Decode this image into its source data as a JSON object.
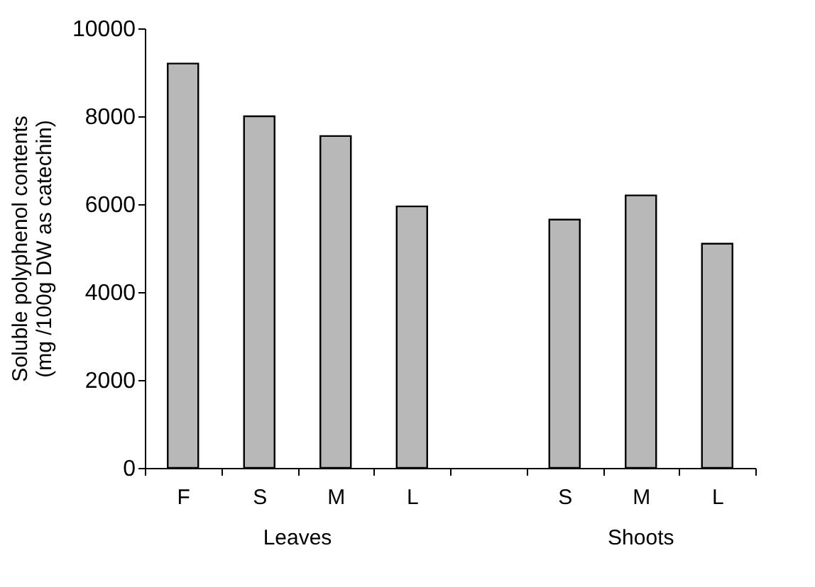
{
  "chart_data": {
    "type": "bar",
    "ylabel": "Soluble polyphenol contents\n(mg /100g DW as catechin)",
    "categories": [
      "F",
      "S",
      "M",
      "L",
      null,
      "S",
      "M",
      "L"
    ],
    "values": [
      9200,
      8000,
      7550,
      5950,
      null,
      5650,
      6200,
      5100
    ],
    "color": "#b8b8b8",
    "ylim": [
      0,
      10000
    ],
    "yticks": [
      0,
      2000,
      4000,
      6000,
      8000,
      10000
    ],
    "annotations": [
      "Leaves",
      "Shoots"
    ]
  }
}
